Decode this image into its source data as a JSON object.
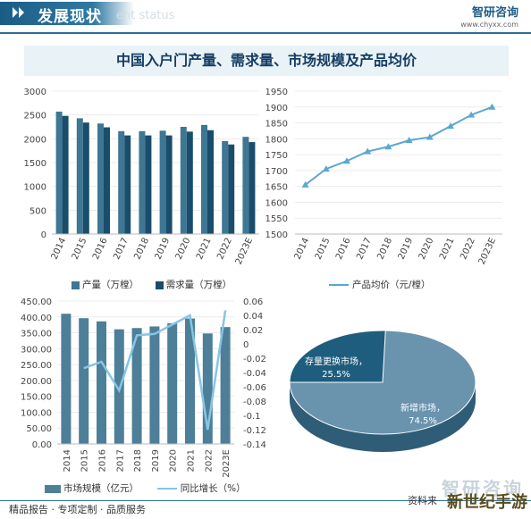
{
  "header": {
    "title": "发展现状",
    "watermark": "ent status",
    "logo_name": "智研咨询",
    "logo_url": "www.chyxx.com"
  },
  "banner_title": "中国入户门产量、需求量、市场规模及产品均价",
  "footer": {
    "tagline": "精品报告 · 专项定制 · 品质服务",
    "brand": "智研咨询",
    "source_prefix": "资料来",
    "corner_mark": "新世纪手游"
  },
  "colors": {
    "production": "#3e7793",
    "demand": "#1a4d6b",
    "market_bar": "#4d7f98",
    "growth_line": "#86c5e6",
    "price_line": "#5aa7d2",
    "pie_main": "#6a93ad",
    "pie_slice": "#1f5d7e"
  },
  "chart_data": [
    {
      "id": "production-demand",
      "type": "bar",
      "categories": [
        "2014",
        "2015",
        "2016",
        "2017",
        "2018",
        "2019",
        "2020",
        "2021",
        "2022",
        "2023E"
      ],
      "series": [
        {
          "name": "产量（万樘）",
          "values": [
            2570,
            2430,
            2320,
            2160,
            2160,
            2170,
            2250,
            2290,
            1950,
            2040
          ]
        },
        {
          "name": "需求量（万樘）",
          "values": [
            2480,
            2340,
            2240,
            2070,
            2070,
            2070,
            2150,
            2180,
            1880,
            1930
          ]
        }
      ],
      "ylim": [
        0,
        3000
      ],
      "yticks": [
        0,
        500,
        1000,
        1500,
        2000,
        2500,
        3000
      ],
      "legend_position": "bottom"
    },
    {
      "id": "avg-price",
      "type": "line",
      "categories": [
        "2014",
        "2015",
        "2016",
        "2017",
        "2018",
        "2019",
        "2020",
        "2021",
        "2022",
        "2023E"
      ],
      "series": [
        {
          "name": "产品均价（元/樘）",
          "values": [
            1655,
            1705,
            1730,
            1760,
            1775,
            1795,
            1805,
            1840,
            1875,
            1900
          ]
        }
      ],
      "ylim": [
        1500,
        1950
      ],
      "yticks": [
        1500,
        1550,
        1600,
        1650,
        1700,
        1750,
        1800,
        1850,
        1900,
        1950
      ],
      "legend_position": "bottom"
    },
    {
      "id": "market-size",
      "type": "bar",
      "categories": [
        "2014",
        "2015",
        "2016",
        "2017",
        "2018",
        "2019",
        "2020",
        "2021",
        "2022",
        "2023E"
      ],
      "series": [
        {
          "name": "市场规模（亿元）",
          "type": "bar",
          "axis": "left",
          "values": [
            410,
            396,
            386,
            361,
            365,
            370,
            380,
            395,
            348,
            368
          ]
        },
        {
          "name": "同比增长（%）",
          "type": "line",
          "axis": "right",
          "values": [
            null,
            -0.034,
            -0.025,
            -0.065,
            0.012,
            0.014,
            0.027,
            0.04,
            -0.12,
            0.047
          ]
        }
      ],
      "ylim": [
        0,
        450
      ],
      "yticks": [
        0,
        50,
        100,
        150,
        200,
        250,
        300,
        350,
        400,
        450
      ],
      "yticks_labels": [
        "0.00",
        "50.00",
        "100.00",
        "150.00",
        "200.00",
        "250.00",
        "300.00",
        "350.00",
        "400.00",
        "450.00"
      ],
      "y2lim": [
        -0.14,
        0.06
      ],
      "y2ticks": [
        -0.14,
        -0.12,
        -0.1,
        -0.08,
        -0.06,
        -0.04,
        -0.02,
        0,
        0.02,
        0.04,
        0.06
      ],
      "legend_position": "bottom"
    },
    {
      "id": "market-structure",
      "type": "pie",
      "slices": [
        {
          "label": "新增市场，",
          "value": 74.5,
          "pct": "74.5%"
        },
        {
          "label": "存量更换市场，",
          "value": 25.5,
          "pct": "25.5%"
        }
      ]
    }
  ]
}
